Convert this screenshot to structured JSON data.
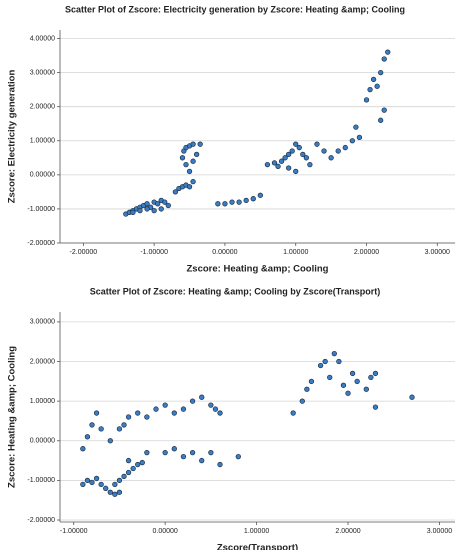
{
  "chart_data": [
    {
      "type": "scatter",
      "title": "Scatter Plot of Zscore:  Electricity generation by Zscore:  Heating &amp; Cooling",
      "x_label": "Zscore:  Heating &amp; Cooling",
      "y_label": "Zscore:  Electricity generation",
      "color": "#3b7dc4",
      "grid": true,
      "xlim": [
        -2.33,
        3.25
      ],
      "ylim": [
        -2.0,
        4.25
      ],
      "xticks": [
        {
          "value": -2,
          "label": "-2.00000"
        },
        {
          "value": -1,
          "label": "-1.00000"
        },
        {
          "value": 0,
          "label": "0.00000"
        },
        {
          "value": 1,
          "label": "1.00000"
        },
        {
          "value": 2,
          "label": "2.00000"
        },
        {
          "value": 3,
          "label": "3.00000"
        }
      ],
      "yticks": [
        {
          "value": -2,
          "label": "-2.00000"
        },
        {
          "value": -1,
          "label": "-1.00000"
        },
        {
          "value": 0,
          "label": "0.00000"
        },
        {
          "value": 1,
          "label": "1.00000"
        },
        {
          "value": 2,
          "label": "2.00000"
        },
        {
          "value": 3,
          "label": "3.00000"
        },
        {
          "value": 4,
          "label": "4.00000"
        }
      ],
      "x": [
        -1.4,
        -1.35,
        -1.3,
        -1.25,
        -1.2,
        -1.15,
        -1.1,
        -1.05,
        -1.0,
        -0.95,
        -0.9,
        -0.85,
        -0.8,
        -1.3,
        -1.2,
        -1.1,
        -1.0,
        -0.9,
        -0.7,
        -0.65,
        -0.6,
        -0.55,
        -0.5,
        -0.45,
        -0.5,
        -0.55,
        -0.6,
        -0.58,
        -0.55,
        -0.5,
        -0.45,
        -0.35,
        -0.4,
        -0.45,
        -0.1,
        0.0,
        0.1,
        0.2,
        0.3,
        0.4,
        0.5,
        0.6,
        0.7,
        0.75,
        0.8,
        0.85,
        0.9,
        0.95,
        1.0,
        1.05,
        1.1,
        1.15,
        0.9,
        1.0,
        1.2,
        1.3,
        1.4,
        1.5,
        1.6,
        1.7,
        1.8,
        1.85,
        1.9,
        2.0,
        2.05,
        2.1,
        2.15,
        2.2,
        2.25,
        2.3,
        2.25,
        2.2
      ],
      "values": [
        -1.15,
        -1.1,
        -1.05,
        -1.0,
        -0.95,
        -0.9,
        -0.85,
        -0.95,
        -0.8,
        -0.85,
        -0.75,
        -0.8,
        -0.9,
        -1.1,
        -1.05,
        -1.0,
        -1.05,
        -1.0,
        -0.5,
        -0.4,
        -0.35,
        -0.3,
        -0.35,
        -0.2,
        0.1,
        0.3,
        0.5,
        0.7,
        0.8,
        0.85,
        0.9,
        0.9,
        0.6,
        0.4,
        -0.85,
        -0.85,
        -0.8,
        -0.8,
        -0.75,
        -0.7,
        -0.6,
        0.3,
        0.35,
        0.25,
        0.4,
        0.5,
        0.6,
        0.7,
        0.9,
        0.8,
        0.6,
        0.5,
        0.2,
        0.1,
        0.3,
        0.9,
        0.7,
        0.5,
        0.7,
        0.8,
        1.0,
        1.4,
        1.1,
        2.2,
        2.5,
        2.8,
        2.6,
        3.0,
        3.4,
        3.6,
        1.9,
        1.6
      ]
    },
    {
      "type": "scatter",
      "title": "Scatter Plot of Zscore:  Heating &amp; Cooling by Zscore(Transport)",
      "x_label": "Zscore(Transport)",
      "y_label": "Zscore:  Heating &amp; Cooling",
      "color": "#3b7dc4",
      "grid": true,
      "xlim": [
        -1.15,
        3.17
      ],
      "ylim": [
        -2.05,
        3.25
      ],
      "xticks": [
        {
          "value": -1,
          "label": "-1.00000"
        },
        {
          "value": 0,
          "label": "0.00000"
        },
        {
          "value": 1,
          "label": "1.00000"
        },
        {
          "value": 2,
          "label": "2.00000"
        },
        {
          "value": 3,
          "label": "3.00000"
        }
      ],
      "yticks": [
        {
          "value": -2,
          "label": "-2.00000"
        },
        {
          "value": -1,
          "label": "-1.00000"
        },
        {
          "value": 0,
          "label": "0.00000"
        },
        {
          "value": 1,
          "label": "1.00000"
        },
        {
          "value": 2,
          "label": "2.00000"
        },
        {
          "value": 3,
          "label": "3.00000"
        }
      ],
      "x": [
        -0.9,
        -0.85,
        -0.8,
        -0.75,
        -0.7,
        -0.65,
        -0.6,
        -0.55,
        -0.5,
        -0.55,
        -0.5,
        -0.45,
        -0.4,
        -0.35,
        -0.3,
        -0.25,
        -0.9,
        -0.85,
        -0.8,
        -0.75,
        -0.7,
        -0.6,
        -0.5,
        -0.45,
        -0.4,
        -0.3,
        -0.2,
        -0.1,
        0.0,
        0.1,
        0.2,
        0.3,
        0.4,
        0.5,
        0.55,
        0.6,
        0.0,
        0.1,
        0.2,
        0.3,
        0.4,
        0.5,
        0.6,
        0.8,
        -0.2,
        -0.4,
        1.4,
        1.5,
        1.55,
        1.6,
        1.7,
        1.75,
        1.8,
        1.85,
        1.9,
        1.95,
        2.0,
        2.05,
        2.1,
        2.2,
        2.25,
        2.3,
        2.3,
        2.7
      ],
      "values": [
        -1.1,
        -1.0,
        -1.05,
        -0.95,
        -1.1,
        -1.2,
        -1.3,
        -1.35,
        -1.3,
        -1.1,
        -1.0,
        -0.9,
        -0.8,
        -0.7,
        -0.6,
        -0.55,
        -0.2,
        0.1,
        0.4,
        0.7,
        0.3,
        0.0,
        0.3,
        0.4,
        0.6,
        0.7,
        0.6,
        0.8,
        0.9,
        0.7,
        0.8,
        1.0,
        1.1,
        0.9,
        0.8,
        0.7,
        -0.3,
        -0.2,
        -0.4,
        -0.3,
        -0.5,
        -0.3,
        -0.6,
        -0.4,
        -0.3,
        -0.5,
        0.7,
        1.0,
        1.3,
        1.5,
        1.9,
        2.0,
        1.6,
        2.2,
        2.0,
        1.4,
        1.2,
        1.7,
        1.5,
        1.3,
        1.6,
        1.7,
        0.85,
        1.1
      ]
    }
  ]
}
